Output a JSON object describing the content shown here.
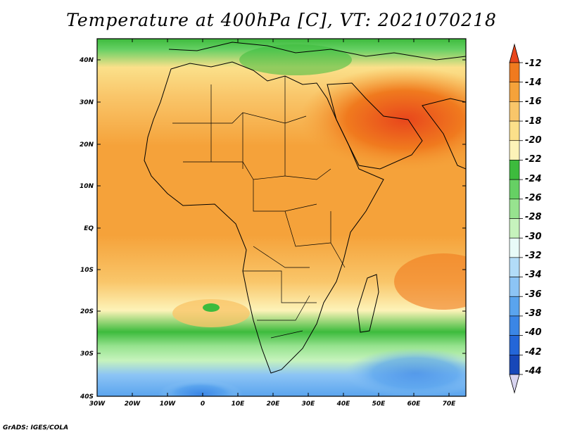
{
  "title": "Temperature at 400hPa [C], VT: 2021070218",
  "credit": "GrADS: IGES/COLA",
  "map": {
    "lat_labels": [
      "40N",
      "30N",
      "20N",
      "10N",
      "EQ",
      "10S",
      "20S",
      "30S",
      "40S"
    ],
    "lon_labels": [
      "30W",
      "20W",
      "10W",
      "0",
      "10E",
      "20E",
      "30E",
      "40E",
      "50E",
      "60E",
      "70E"
    ]
  },
  "colorbar": {
    "labels": [
      "-12",
      "-14",
      "-16",
      "-18",
      "-20",
      "-22",
      "-24",
      "-26",
      "-28",
      "-30",
      "-32",
      "-34",
      "-36",
      "-38",
      "-40",
      "-42",
      "-44"
    ],
    "colors": [
      "#e8461c",
      "#f07a1e",
      "#f5a23a",
      "#f9c66a",
      "#fbe08a",
      "#fdf3b8",
      "#3dbb3d",
      "#66d064",
      "#97e38f",
      "#c6f3bd",
      "#e8fbf8",
      "#b2dcf8",
      "#8cc4f5",
      "#5aa4ee",
      "#3b86e6",
      "#2466d8",
      "#1747b8",
      "#0c2a8c"
    ]
  },
  "chart_data": {
    "type": "heatmap",
    "title": "Temperature at 400hPa [C], VT: 2021070218",
    "variable": "Temperature at 400hPa",
    "units": "C",
    "valid_time": "2021070218",
    "x_ticks": [
      "30W",
      "20W",
      "10W",
      "0",
      "10E",
      "20E",
      "30E",
      "40E",
      "50E",
      "60E",
      "70E"
    ],
    "y_ticks": [
      "40N",
      "30N",
      "20N",
      "10N",
      "EQ",
      "10S",
      "20S",
      "30S",
      "40S"
    ],
    "xlim": [
      -30,
      75
    ],
    "ylim": [
      -40,
      45
    ],
    "colorbar_levels": [
      -12,
      -14,
      -16,
      -18,
      -20,
      -22,
      -24,
      -26,
      -28,
      -30,
      -32,
      -34,
      -36,
      -38,
      -40,
      -42,
      -44
    ]
  }
}
